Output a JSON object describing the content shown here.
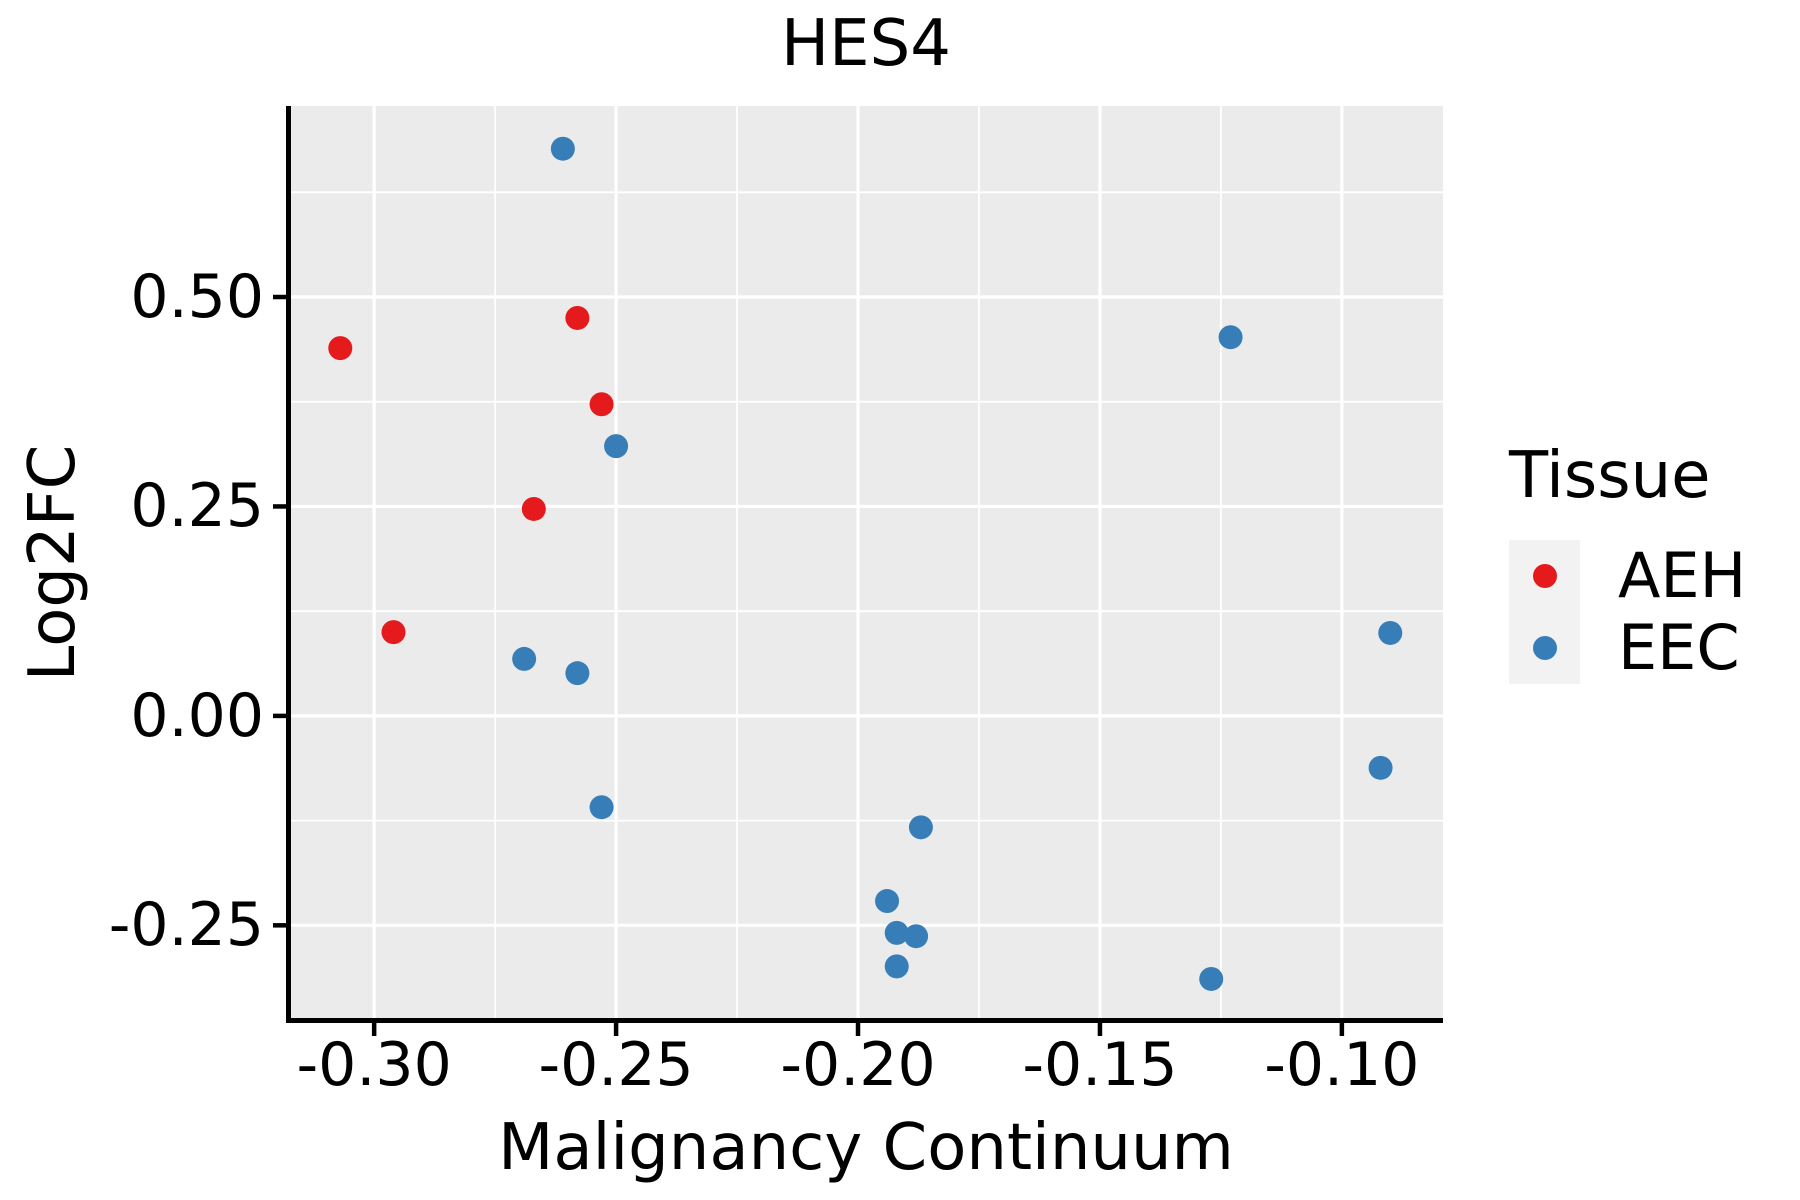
{
  "chart_data": {
    "type": "scatter",
    "title": "HES4",
    "xlabel": "Malignancy Continuum",
    "ylabel": "Log2FC",
    "xlim": [
      -0.3176,
      -0.0791
    ],
    "ylim": [
      -0.363,
      0.728
    ],
    "x_ticks": [
      -0.3,
      -0.25,
      -0.2,
      -0.15,
      -0.1
    ],
    "x_tick_labels": [
      "-0.30",
      "-0.25",
      "-0.20",
      "-0.15",
      "-0.10"
    ],
    "y_ticks": [
      0.5,
      0.25,
      0.0,
      -0.25
    ],
    "y_tick_labels": [
      "0.50",
      "0.25",
      "0.00",
      "-0.25"
    ],
    "x_minor_step": 0.025,
    "y_minor_step": 0.125,
    "grid": "major+minor",
    "legend_position": "right",
    "panel_bg": "#EBEBEB",
    "grid_color": "#FFFFFF",
    "axis_color": "#000000",
    "point_radius": 12,
    "legend": {
      "title": "Tissue",
      "entries": [
        {
          "label": "AEH",
          "color": "#E41A1C"
        },
        {
          "label": "EEC",
          "color": "#377EB8"
        }
      ]
    },
    "series": [
      {
        "name": "AEH",
        "color": "#E41A1C",
        "points": [
          [
            -0.307,
            0.439
          ],
          [
            -0.258,
            0.475
          ],
          [
            -0.253,
            0.372
          ],
          [
            -0.267,
            0.247
          ],
          [
            -0.296,
            0.1
          ]
        ]
      },
      {
        "name": "EEC",
        "color": "#377EB8",
        "points": [
          [
            -0.261,
            0.677
          ],
          [
            -0.25,
            0.322
          ],
          [
            -0.269,
            0.068
          ],
          [
            -0.258,
            0.051
          ],
          [
            -0.253,
            -0.109
          ],
          [
            -0.187,
            -0.133
          ],
          [
            -0.194,
            -0.221
          ],
          [
            -0.192,
            -0.259
          ],
          [
            -0.188,
            -0.263
          ],
          [
            -0.192,
            -0.299
          ],
          [
            -0.123,
            0.452
          ],
          [
            -0.09,
            0.099
          ],
          [
            -0.092,
            -0.062
          ],
          [
            -0.127,
            -0.314
          ]
        ]
      }
    ]
  }
}
